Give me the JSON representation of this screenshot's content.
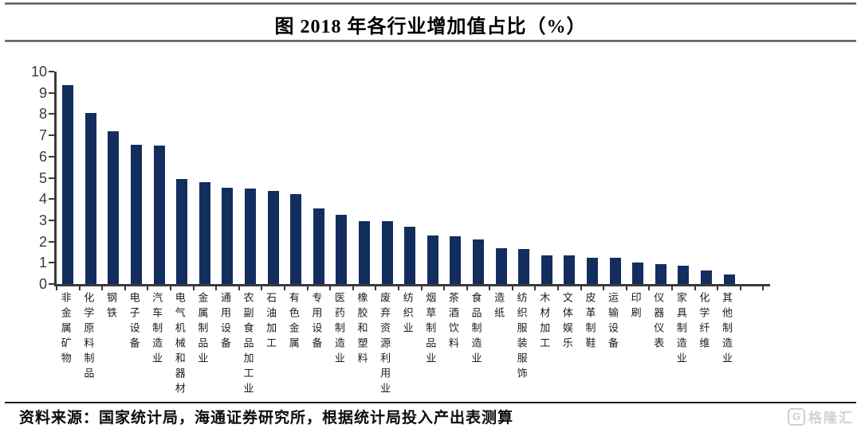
{
  "header": {
    "title": "图 2018 年各行业增加值占比（%）"
  },
  "chart_data": {
    "type": "bar",
    "title": "图 2018 年各行业增加值占比（%）",
    "categories": [
      "非金属矿物",
      "化学原料制品",
      "钢铁",
      "电子设备",
      "汽车制造业",
      "电气机械和器材",
      "金属制品业",
      "通用设备",
      "农副食品加工业",
      "石油加工",
      "有色金属",
      "专用设备",
      "医药制造业",
      "橡胶和塑料",
      "废弃资源利用业",
      "纺织业",
      "烟草制品业",
      "茶酒饮料",
      "食品制造业",
      "造纸",
      "纺织服装服饰",
      "木材加工",
      "文体娱乐",
      "皮革制鞋",
      "运输设备",
      "印刷",
      "仪器仪表",
      "家具制造业",
      "化学纤维",
      "其他制造业"
    ],
    "values": [
      9.35,
      8.05,
      7.2,
      6.55,
      6.5,
      4.95,
      4.8,
      4.55,
      4.5,
      4.4,
      4.25,
      3.55,
      3.25,
      2.95,
      2.95,
      2.7,
      2.3,
      2.25,
      2.1,
      1.7,
      1.65,
      1.35,
      1.35,
      1.25,
      1.25,
      1.0,
      0.95,
      0.85,
      0.65,
      0.45
    ],
    "xlabel": "",
    "ylabel": "",
    "ylim": [
      0,
      10
    ],
    "yticks": [
      0,
      1,
      2,
      3,
      4,
      5,
      6,
      7,
      8,
      9,
      10
    ],
    "grid": false,
    "legend": false,
    "bar_color": "#132D5F",
    "axis_color": "#3A3A3A"
  },
  "footer": {
    "source_text": "资料来源：国家统计局，海通证券研究所，根据统计局投入产出表测算",
    "watermark": {
      "icon_letter": "G",
      "text": "格隆汇"
    }
  }
}
